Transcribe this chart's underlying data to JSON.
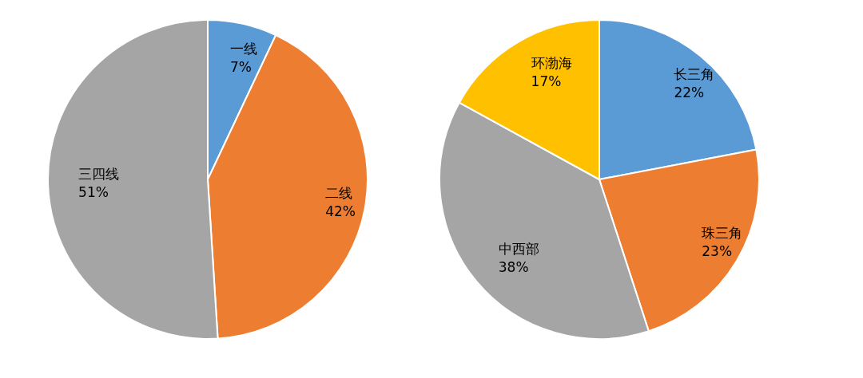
{
  "chart_data": [
    {
      "type": "pie",
      "categories": [
        "一线",
        "二线",
        "三四线"
      ],
      "values": [
        7,
        42,
        51
      ],
      "colors": [
        "#5b9bd5",
        "#ed7d31",
        "#a5a5a5"
      ],
      "value_labels": [
        "7%",
        "42%",
        "51%"
      ],
      "legend": false
    },
    {
      "type": "pie",
      "categories": [
        "长三角",
        "珠三角",
        "中西部",
        "环渤海"
      ],
      "values": [
        22,
        23,
        38,
        17
      ],
      "colors": [
        "#5b9bd5",
        "#ed7d31",
        "#a5a5a5",
        "#ffc000"
      ],
      "value_labels": [
        "22%",
        "23%",
        "38%",
        "17%"
      ],
      "legend": false
    }
  ]
}
